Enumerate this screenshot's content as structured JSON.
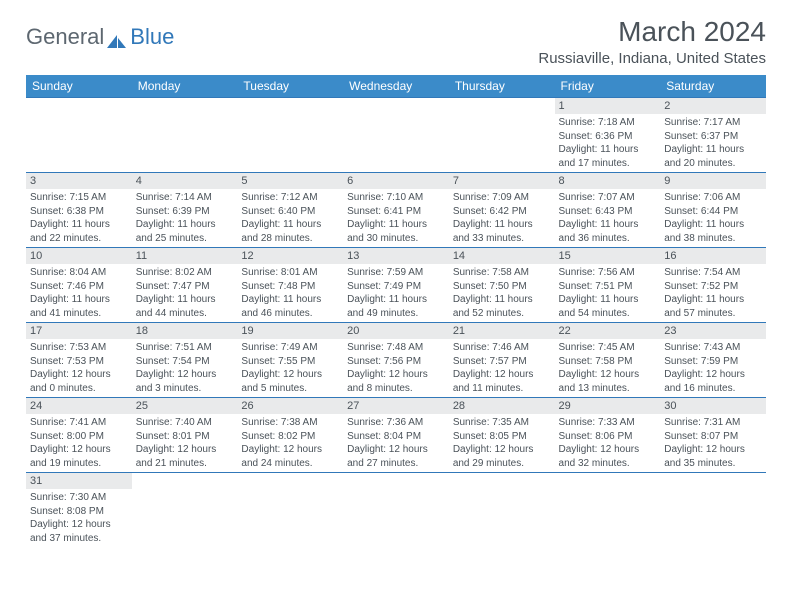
{
  "logo": {
    "part1": "General",
    "part2": "Blue",
    "icon_color": "#3178b9"
  },
  "header": {
    "month_year": "March 2024",
    "location": "Russiaville, Indiana, United States"
  },
  "colors": {
    "header_bg": "#3b8bc9",
    "header_text": "#ffffff",
    "day_num_bg": "#e9eaeb",
    "border": "#3178b9",
    "text": "#4a5259",
    "logo_gray": "#5d6770",
    "logo_blue": "#3178b9"
  },
  "day_headers": [
    "Sunday",
    "Monday",
    "Tuesday",
    "Wednesday",
    "Thursday",
    "Friday",
    "Saturday"
  ],
  "weeks": [
    [
      null,
      null,
      null,
      null,
      null,
      {
        "num": "1",
        "sunrise": "Sunrise: 7:18 AM",
        "sunset": "Sunset: 6:36 PM",
        "daylight1": "Daylight: 11 hours",
        "daylight2": "and 17 minutes."
      },
      {
        "num": "2",
        "sunrise": "Sunrise: 7:17 AM",
        "sunset": "Sunset: 6:37 PM",
        "daylight1": "Daylight: 11 hours",
        "daylight2": "and 20 minutes."
      }
    ],
    [
      {
        "num": "3",
        "sunrise": "Sunrise: 7:15 AM",
        "sunset": "Sunset: 6:38 PM",
        "daylight1": "Daylight: 11 hours",
        "daylight2": "and 22 minutes."
      },
      {
        "num": "4",
        "sunrise": "Sunrise: 7:14 AM",
        "sunset": "Sunset: 6:39 PM",
        "daylight1": "Daylight: 11 hours",
        "daylight2": "and 25 minutes."
      },
      {
        "num": "5",
        "sunrise": "Sunrise: 7:12 AM",
        "sunset": "Sunset: 6:40 PM",
        "daylight1": "Daylight: 11 hours",
        "daylight2": "and 28 minutes."
      },
      {
        "num": "6",
        "sunrise": "Sunrise: 7:10 AM",
        "sunset": "Sunset: 6:41 PM",
        "daylight1": "Daylight: 11 hours",
        "daylight2": "and 30 minutes."
      },
      {
        "num": "7",
        "sunrise": "Sunrise: 7:09 AM",
        "sunset": "Sunset: 6:42 PM",
        "daylight1": "Daylight: 11 hours",
        "daylight2": "and 33 minutes."
      },
      {
        "num": "8",
        "sunrise": "Sunrise: 7:07 AM",
        "sunset": "Sunset: 6:43 PM",
        "daylight1": "Daylight: 11 hours",
        "daylight2": "and 36 minutes."
      },
      {
        "num": "9",
        "sunrise": "Sunrise: 7:06 AM",
        "sunset": "Sunset: 6:44 PM",
        "daylight1": "Daylight: 11 hours",
        "daylight2": "and 38 minutes."
      }
    ],
    [
      {
        "num": "10",
        "sunrise": "Sunrise: 8:04 AM",
        "sunset": "Sunset: 7:46 PM",
        "daylight1": "Daylight: 11 hours",
        "daylight2": "and 41 minutes."
      },
      {
        "num": "11",
        "sunrise": "Sunrise: 8:02 AM",
        "sunset": "Sunset: 7:47 PM",
        "daylight1": "Daylight: 11 hours",
        "daylight2": "and 44 minutes."
      },
      {
        "num": "12",
        "sunrise": "Sunrise: 8:01 AM",
        "sunset": "Sunset: 7:48 PM",
        "daylight1": "Daylight: 11 hours",
        "daylight2": "and 46 minutes."
      },
      {
        "num": "13",
        "sunrise": "Sunrise: 7:59 AM",
        "sunset": "Sunset: 7:49 PM",
        "daylight1": "Daylight: 11 hours",
        "daylight2": "and 49 minutes."
      },
      {
        "num": "14",
        "sunrise": "Sunrise: 7:58 AM",
        "sunset": "Sunset: 7:50 PM",
        "daylight1": "Daylight: 11 hours",
        "daylight2": "and 52 minutes."
      },
      {
        "num": "15",
        "sunrise": "Sunrise: 7:56 AM",
        "sunset": "Sunset: 7:51 PM",
        "daylight1": "Daylight: 11 hours",
        "daylight2": "and 54 minutes."
      },
      {
        "num": "16",
        "sunrise": "Sunrise: 7:54 AM",
        "sunset": "Sunset: 7:52 PM",
        "daylight1": "Daylight: 11 hours",
        "daylight2": "and 57 minutes."
      }
    ],
    [
      {
        "num": "17",
        "sunrise": "Sunrise: 7:53 AM",
        "sunset": "Sunset: 7:53 PM",
        "daylight1": "Daylight: 12 hours",
        "daylight2": "and 0 minutes."
      },
      {
        "num": "18",
        "sunrise": "Sunrise: 7:51 AM",
        "sunset": "Sunset: 7:54 PM",
        "daylight1": "Daylight: 12 hours",
        "daylight2": "and 3 minutes."
      },
      {
        "num": "19",
        "sunrise": "Sunrise: 7:49 AM",
        "sunset": "Sunset: 7:55 PM",
        "daylight1": "Daylight: 12 hours",
        "daylight2": "and 5 minutes."
      },
      {
        "num": "20",
        "sunrise": "Sunrise: 7:48 AM",
        "sunset": "Sunset: 7:56 PM",
        "daylight1": "Daylight: 12 hours",
        "daylight2": "and 8 minutes."
      },
      {
        "num": "21",
        "sunrise": "Sunrise: 7:46 AM",
        "sunset": "Sunset: 7:57 PM",
        "daylight1": "Daylight: 12 hours",
        "daylight2": "and 11 minutes."
      },
      {
        "num": "22",
        "sunrise": "Sunrise: 7:45 AM",
        "sunset": "Sunset: 7:58 PM",
        "daylight1": "Daylight: 12 hours",
        "daylight2": "and 13 minutes."
      },
      {
        "num": "23",
        "sunrise": "Sunrise: 7:43 AM",
        "sunset": "Sunset: 7:59 PM",
        "daylight1": "Daylight: 12 hours",
        "daylight2": "and 16 minutes."
      }
    ],
    [
      {
        "num": "24",
        "sunrise": "Sunrise: 7:41 AM",
        "sunset": "Sunset: 8:00 PM",
        "daylight1": "Daylight: 12 hours",
        "daylight2": "and 19 minutes."
      },
      {
        "num": "25",
        "sunrise": "Sunrise: 7:40 AM",
        "sunset": "Sunset: 8:01 PM",
        "daylight1": "Daylight: 12 hours",
        "daylight2": "and 21 minutes."
      },
      {
        "num": "26",
        "sunrise": "Sunrise: 7:38 AM",
        "sunset": "Sunset: 8:02 PM",
        "daylight1": "Daylight: 12 hours",
        "daylight2": "and 24 minutes."
      },
      {
        "num": "27",
        "sunrise": "Sunrise: 7:36 AM",
        "sunset": "Sunset: 8:04 PM",
        "daylight1": "Daylight: 12 hours",
        "daylight2": "and 27 minutes."
      },
      {
        "num": "28",
        "sunrise": "Sunrise: 7:35 AM",
        "sunset": "Sunset: 8:05 PM",
        "daylight1": "Daylight: 12 hours",
        "daylight2": "and 29 minutes."
      },
      {
        "num": "29",
        "sunrise": "Sunrise: 7:33 AM",
        "sunset": "Sunset: 8:06 PM",
        "daylight1": "Daylight: 12 hours",
        "daylight2": "and 32 minutes."
      },
      {
        "num": "30",
        "sunrise": "Sunrise: 7:31 AM",
        "sunset": "Sunset: 8:07 PM",
        "daylight1": "Daylight: 12 hours",
        "daylight2": "and 35 minutes."
      }
    ],
    [
      {
        "num": "31",
        "sunrise": "Sunrise: 7:30 AM",
        "sunset": "Sunset: 8:08 PM",
        "daylight1": "Daylight: 12 hours",
        "daylight2": "and 37 minutes."
      },
      null,
      null,
      null,
      null,
      null,
      null
    ]
  ]
}
